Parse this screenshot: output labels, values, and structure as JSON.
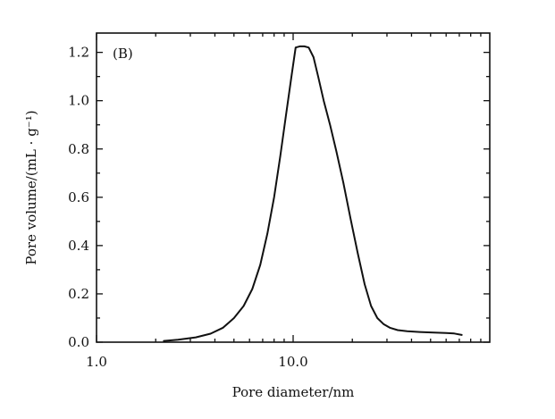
{
  "chart_data": {
    "type": "line",
    "title": "",
    "panel_label": "(B)",
    "xlabel": "Pore diameter/nm",
    "ylabel": "Pore volume/(mL · g⁻¹)",
    "x_scale": "log",
    "xlim": [
      1.0,
      100.0
    ],
    "ylim": [
      0.0,
      1.28
    ],
    "x_ticks": [
      {
        "value": 1.0,
        "label": "1.0"
      },
      {
        "value": 10.0,
        "label": "10.0"
      }
    ],
    "y_ticks": [
      {
        "value": 0.0,
        "label": "0.0"
      },
      {
        "value": 0.2,
        "label": "0.2"
      },
      {
        "value": 0.4,
        "label": "0.4"
      },
      {
        "value": 0.6,
        "label": "0.6"
      },
      {
        "value": 0.8,
        "label": "0.8"
      },
      {
        "value": 1.0,
        "label": "1.0"
      },
      {
        "value": 1.2,
        "label": "1.2"
      }
    ],
    "grid": false,
    "legend": "none",
    "series": [
      {
        "x": [
          2.2,
          2.6,
          3.2,
          3.8,
          4.4,
          5.0,
          5.6,
          6.2,
          6.8,
          7.4,
          8.0,
          8.6,
          9.2,
          9.8,
          10.3,
          10.8,
          11.4,
          12.0,
          12.7,
          13.4,
          14.3,
          15.4,
          16.6,
          18.0,
          19.6,
          21.3,
          23.1,
          24.9,
          26.8,
          28.8,
          31.0,
          34.0,
          38.0,
          44.0,
          52.0,
          60.0,
          66.0,
          72.0
        ],
        "y": [
          0.005,
          0.01,
          0.02,
          0.035,
          0.06,
          0.1,
          0.15,
          0.22,
          0.32,
          0.45,
          0.6,
          0.77,
          0.94,
          1.1,
          1.22,
          1.225,
          1.225,
          1.22,
          1.18,
          1.1,
          1.0,
          0.9,
          0.79,
          0.66,
          0.51,
          0.37,
          0.24,
          0.15,
          0.1,
          0.075,
          0.06,
          0.05,
          0.045,
          0.042,
          0.04,
          0.038,
          0.036,
          0.03
        ]
      }
    ]
  }
}
